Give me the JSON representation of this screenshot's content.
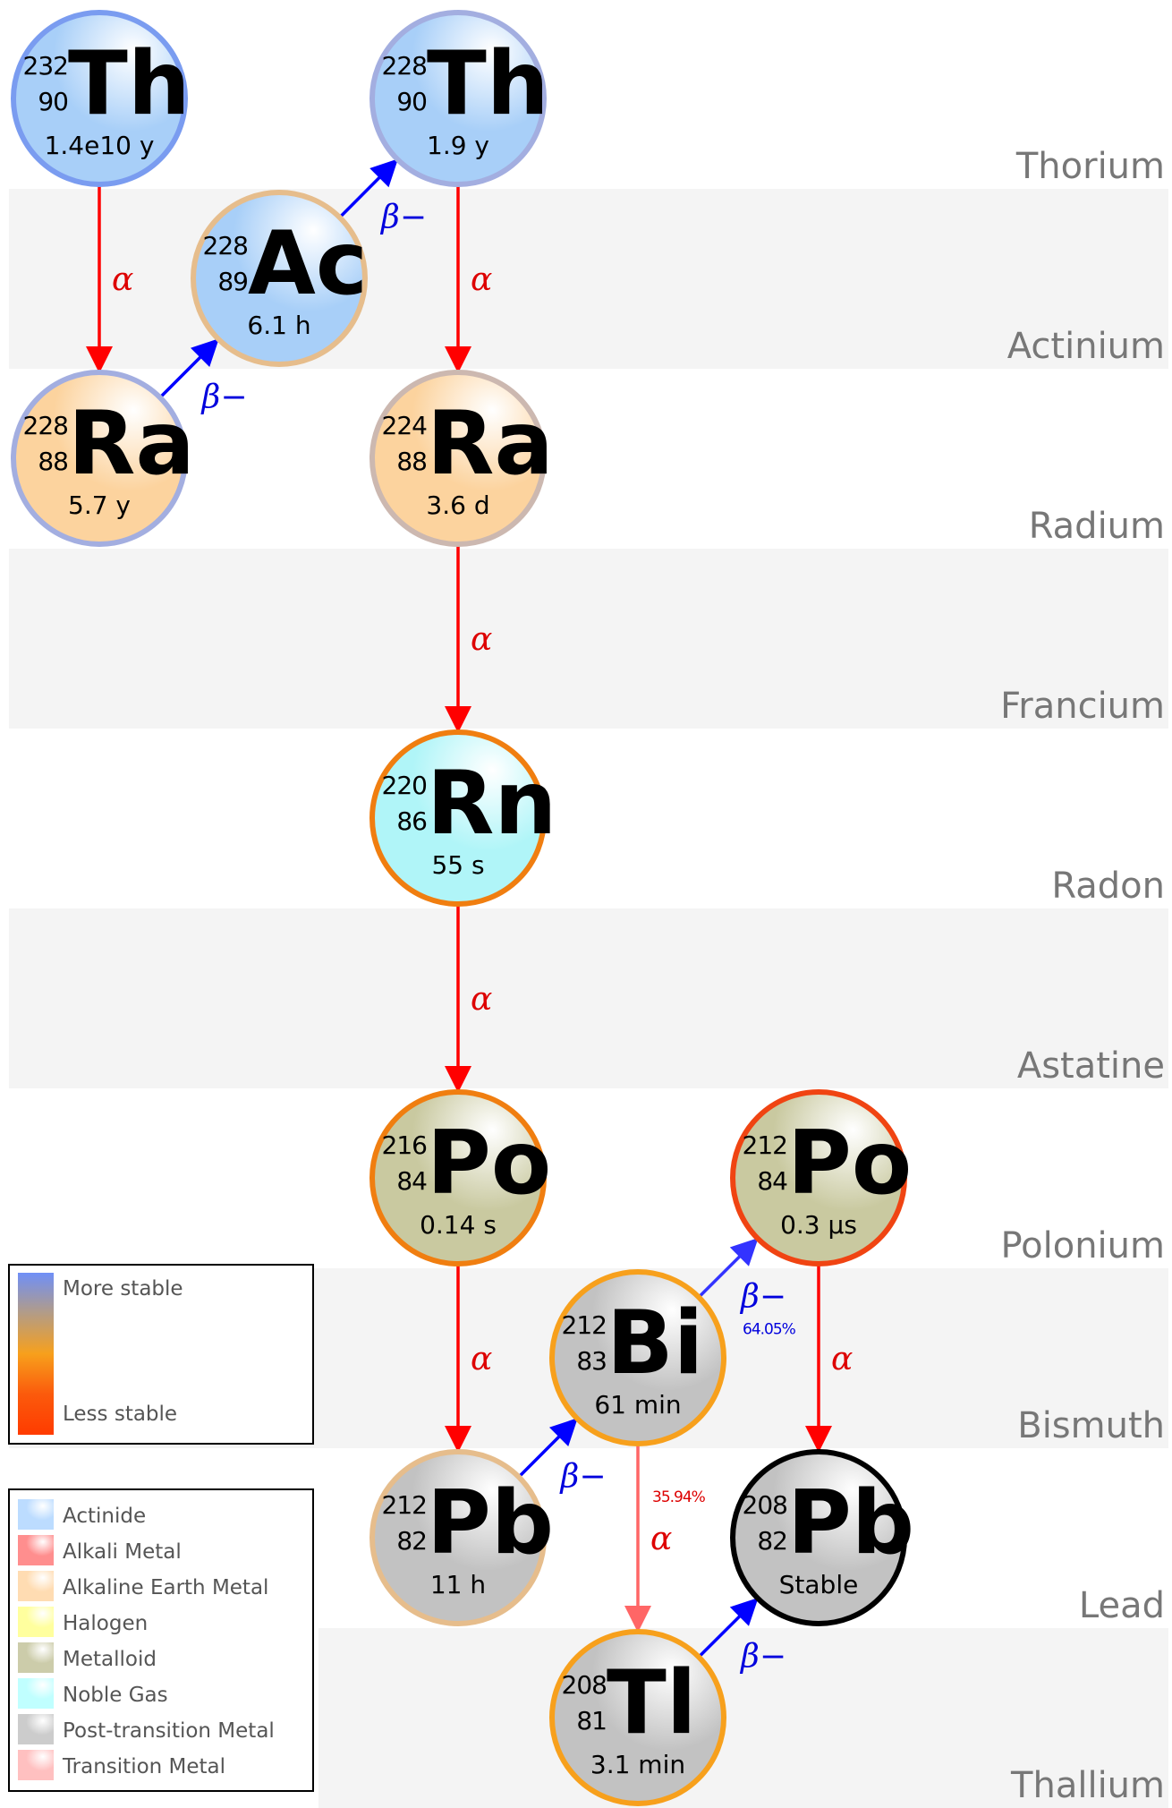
{
  "bands": [
    {
      "name": "Thorium",
      "shaded": false
    },
    {
      "name": "Actinium",
      "shaded": true
    },
    {
      "name": "Radium",
      "shaded": false
    },
    {
      "name": "Francium",
      "shaded": true
    },
    {
      "name": "Radon",
      "shaded": false
    },
    {
      "name": "Astatine",
      "shaded": true
    },
    {
      "name": "Polonium",
      "shaded": false
    },
    {
      "name": "Bismuth",
      "shaded": true
    },
    {
      "name": "Lead",
      "shaded": false
    },
    {
      "name": "Thallium",
      "shaded": true
    }
  ],
  "nuclides": [
    {
      "id": "th232",
      "mass": "232",
      "number": "90",
      "symbol": "Th",
      "half_life": "1.4e10 y",
      "category": "actinide",
      "stability_color": "#7a9cf0"
    },
    {
      "id": "th228",
      "mass": "228",
      "number": "90",
      "symbol": "Th",
      "half_life": "1.9 y",
      "category": "actinide",
      "stability_color": "#a3aee0"
    },
    {
      "id": "ac228",
      "mass": "228",
      "number": "89",
      "symbol": "Ac",
      "half_life": "6.1 h",
      "category": "actinide",
      "stability_color": "#e6bd8c"
    },
    {
      "id": "ra228",
      "mass": "228",
      "number": "88",
      "symbol": "Ra",
      "half_life": "5.7 y",
      "category": "alkaline_earth",
      "stability_color": "#a3aee0"
    },
    {
      "id": "ra224",
      "mass": "224",
      "number": "88",
      "symbol": "Ra",
      "half_life": "3.6 d",
      "category": "alkaline_earth",
      "stability_color": "#ccb8b0"
    },
    {
      "id": "rn220",
      "mass": "220",
      "number": "86",
      "symbol": "Rn",
      "half_life": "55 s",
      "category": "noble_gas",
      "stability_color": "#f07e10"
    },
    {
      "id": "po216",
      "mass": "216",
      "number": "84",
      "symbol": "Po",
      "half_life": "0.14 s",
      "category": "metalloid",
      "stability_color": "#f07e10"
    },
    {
      "id": "po212",
      "mass": "212",
      "number": "84",
      "symbol": "Po",
      "half_life": "0.3 μs",
      "category": "metalloid",
      "stability_color": "#f04412"
    },
    {
      "id": "bi212",
      "mass": "212",
      "number": "83",
      "symbol": "Bi",
      "half_life": "61 min",
      "category": "post_transition",
      "stability_color": "#f7a01c"
    },
    {
      "id": "pb212",
      "mass": "212",
      "number": "82",
      "symbol": "Pb",
      "half_life": "11 h",
      "category": "post_transition",
      "stability_color": "#e6bd8c"
    },
    {
      "id": "pb208",
      "mass": "208",
      "number": "82",
      "symbol": "Pb",
      "half_life": "Stable",
      "category": "post_transition",
      "stability_color": "#000000"
    },
    {
      "id": "tl208",
      "mass": "208",
      "number": "81",
      "symbol": "Tl",
      "half_life": "3.1 min",
      "category": "post_transition",
      "stability_color": "#f7a01c"
    }
  ],
  "decays": [
    {
      "from": "th232",
      "to": "ra228",
      "type": "alpha",
      "label": "α",
      "percent": ""
    },
    {
      "from": "ra228",
      "to": "ac228",
      "type": "beta",
      "label": "β−",
      "percent": ""
    },
    {
      "from": "ac228",
      "to": "th228",
      "type": "beta",
      "label": "β−",
      "percent": ""
    },
    {
      "from": "th228",
      "to": "ra224",
      "type": "alpha",
      "label": "α",
      "percent": ""
    },
    {
      "from": "ra224",
      "to": "rn220",
      "type": "alpha",
      "label": "α",
      "percent": ""
    },
    {
      "from": "rn220",
      "to": "po216",
      "type": "alpha",
      "label": "α",
      "percent": ""
    },
    {
      "from": "po216",
      "to": "pb212",
      "type": "alpha",
      "label": "α",
      "percent": ""
    },
    {
      "from": "pb212",
      "to": "bi212",
      "type": "beta",
      "label": "β−",
      "percent": ""
    },
    {
      "from": "bi212",
      "to": "po212",
      "type": "beta",
      "label": "β−",
      "percent": "64.05%"
    },
    {
      "from": "bi212",
      "to": "tl208",
      "type": "alpha_minor",
      "label": "α",
      "percent": "35.94%"
    },
    {
      "from": "po212",
      "to": "pb208",
      "type": "alpha",
      "label": "α",
      "percent": ""
    },
    {
      "from": "tl208",
      "to": "pb208",
      "type": "beta",
      "label": "β−",
      "percent": ""
    }
  ],
  "decay_colors": {
    "alpha": "#ff0000",
    "alpha_minor": "#ff6666",
    "beta": "#0000ff",
    "beta_label": "#0000dd",
    "alpha_label": "#dd0000",
    "beta_minor_arrow": "#3333ff"
  },
  "stability_legend": {
    "more_label": "More stable",
    "less_label": "Less stable",
    "gradient": [
      "#6f8ff7",
      "#b39c86",
      "#f7a01c",
      "#fb5a0c",
      "#ff3b00"
    ]
  },
  "category_legend": [
    {
      "key": "actinide",
      "label": "Actinide",
      "color": "#bcdcff"
    },
    {
      "key": "alkali",
      "label": "Alkali Metal",
      "color": "#ff8e8e"
    },
    {
      "key": "alkaline_earth",
      "label": "Alkaline Earth Metal",
      "color": "#ffdcb2"
    },
    {
      "key": "halogen",
      "label": "Halogen",
      "color": "#ffff9e"
    },
    {
      "key": "metalloid",
      "label": "Metalloid",
      "color": "#ccccaa"
    },
    {
      "key": "noble_gas",
      "label": "Noble Gas",
      "color": "#c0ffff"
    },
    {
      "key": "post_transition",
      "label": "Post-transition Metal",
      "color": "#cccccc"
    },
    {
      "key": "transition",
      "label": "Transition Metal",
      "color": "#ffc0c0"
    }
  ]
}
